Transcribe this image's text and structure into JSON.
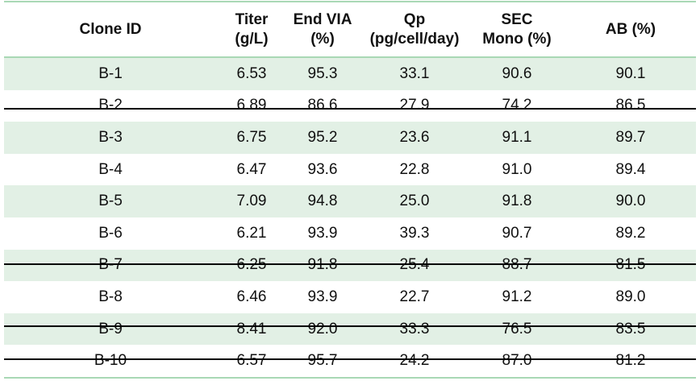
{
  "table": {
    "header": [
      "Clone ID",
      "Titer\n(g/L)",
      "End VIA\n(%)",
      "Qp\n(pg/cell/day)",
      "SEC\nMono (%)",
      "AB (%)"
    ],
    "rows": [
      [
        "B-1",
        "6.53",
        "95.3",
        "33.1",
        "90.6",
        "90.1"
      ],
      [
        "B-2",
        "6.89",
        "86.6",
        "27.9",
        "74.2",
        "86.5"
      ],
      [
        "B-3",
        "6.75",
        "95.2",
        "23.6",
        "91.1",
        "89.7"
      ],
      [
        "B-4",
        "6.47",
        "93.6",
        "22.8",
        "91.0",
        "89.4"
      ],
      [
        "B-5",
        "7.09",
        "94.8",
        "25.0",
        "91.8",
        "90.0"
      ],
      [
        "B-6",
        "6.21",
        "93.9",
        "39.3",
        "90.7",
        "89.2"
      ],
      [
        "B-7",
        "6.25",
        "91.8",
        "25.4",
        "88.7",
        "81.5"
      ],
      [
        "B-8",
        "6.46",
        "93.9",
        "22.7",
        "91.2",
        "89.0"
      ],
      [
        "B-9",
        "8.41",
        "92.0",
        "33.3",
        "76.5",
        "83.5"
      ],
      [
        "B-10",
        "6.57",
        "95.7",
        "24.2",
        "87.0",
        "81.2"
      ]
    ]
  }
}
